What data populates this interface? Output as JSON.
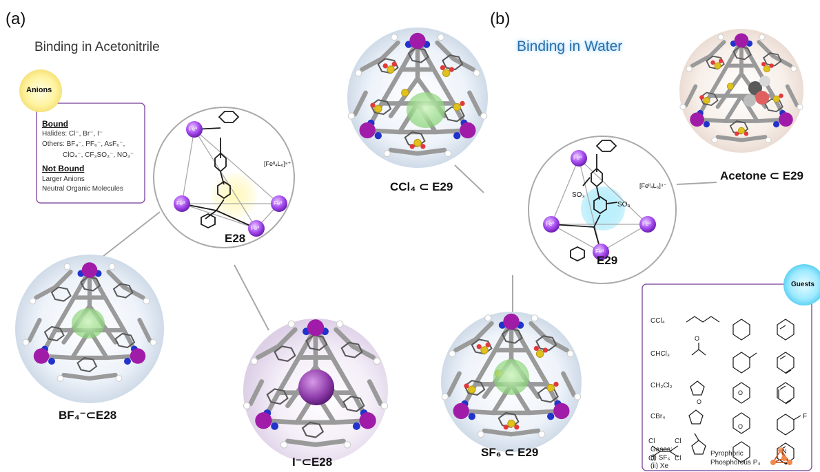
{
  "panel_a": {
    "label": "(a)",
    "heading": "Binding in Acetonitrile",
    "anions_badge": "Anions",
    "bound_title": "Bound",
    "bound_halides": "Halides: Cl⁻, Br⁻, I⁻",
    "bound_others_1": "Others: BF₄⁻, PF₆⁻, AsF₆⁻,",
    "bound_others_2": "ClO₄⁻, CF₃SO₃⁻, NO₃⁻",
    "not_bound_title": "Not Bound",
    "not_bound_1": "Larger Anions",
    "not_bound_2": "Neutral Organic Molecules",
    "cage_formula": "[Feᴵᴵ₄L₆]⁸⁺",
    "cage_name": "E28",
    "fe_label": "Feᴵᴵ",
    "complex_1": "BF₄⁻⊂E28",
    "complex_2": "I⁻⊂E28"
  },
  "panel_b": {
    "label": "(b)",
    "heading": "Binding in Water",
    "cage_formula": "[Feᴵᴵ₄L₆]⁴⁻",
    "cage_name": "E29",
    "fe_label": "Feᴵᴵ",
    "so3_label": "SO₃",
    "complex_1": "CCl₄ ⊂ E29",
    "complex_2": "Acetone ⊂ E29",
    "complex_3": "SF₆ ⊂ E29",
    "guests_badge": "Guests",
    "guest_ccl4": "CCl₄",
    "guest_chcl3": "CHCl₃",
    "guest_ch2cl2": "CH₂Cl₂",
    "guest_cbr4": "CBr₄",
    "cl": "Cl",
    "f": "F",
    "n": "N",
    "o": "O",
    "p": "P",
    "gases_title": "Gases:",
    "gas_1": "(i) SF₆",
    "gas_2": "(ii) Xe",
    "pyro_1": "Pyrophoric",
    "pyro_2": "Phosphorous P₄"
  }
}
